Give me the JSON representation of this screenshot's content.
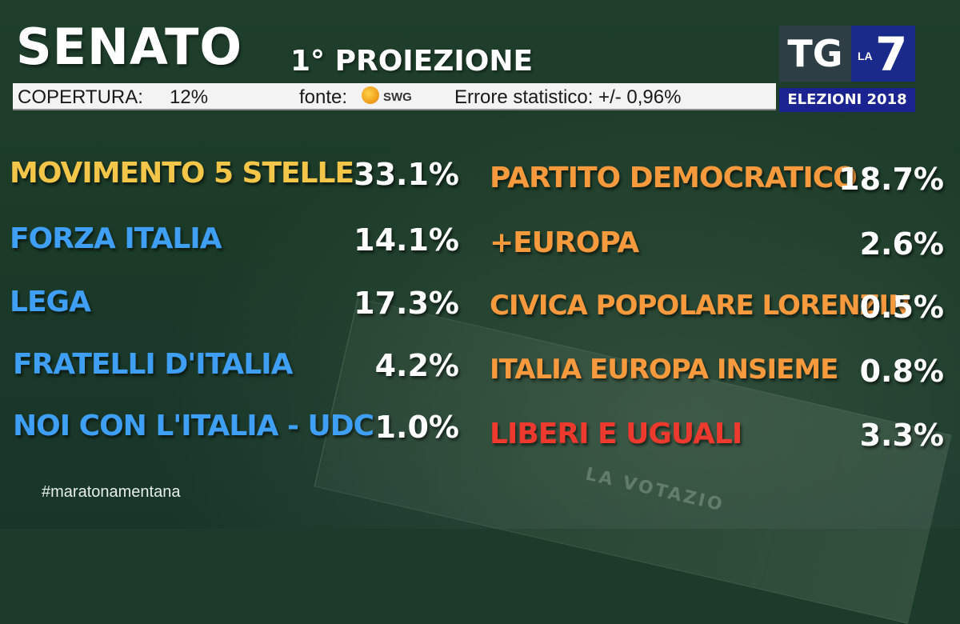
{
  "header": {
    "title": "SENATO",
    "subtitle": "1° PROIEZIONE"
  },
  "infobar": {
    "coverage_label": "COPERTURA:",
    "coverage_value": "12%",
    "source_label": "fonte:",
    "source_logo_text": "SWG",
    "error_text": "Errore statistico: +/- 0,96%"
  },
  "branding": {
    "tg": "TG",
    "la": "LA",
    "seven": "7",
    "election": "ELEZIONI 2018"
  },
  "left_column": [
    {
      "party": "MOVIMENTO 5 STELLE",
      "value": "33.1%",
      "color": "#f3c64a"
    },
    {
      "party": "FORZA ITALIA",
      "value": "14.1%",
      "color": "#3f9ff5"
    },
    {
      "party": "LEGA",
      "value": "17.3%",
      "color": "#3f9ff5"
    },
    {
      "party": "FRATELLI D'ITALIA",
      "value": "4.2%",
      "color": "#3f9ff5"
    },
    {
      "party": "NOI CON L'ITALIA - UDC",
      "value": "1.0%",
      "color": "#3f9ff5"
    }
  ],
  "right_column": [
    {
      "party": "PARTITO DEMOCRATICO",
      "value": "18.7%",
      "color": "#f79a3e"
    },
    {
      "party": "+EUROPA",
      "value": "2.6%",
      "color": "#f79a3e"
    },
    {
      "party": "CIVICA POPOLARE LORENZIN",
      "value": "0.5%",
      "color": "#f79a3e"
    },
    {
      "party": "ITALIA EUROPA INSIEME",
      "value": "0.8%",
      "color": "#f79a3e"
    },
    {
      "party": "LIBERI E UGUALI",
      "value": "3.3%",
      "color": "#ee3a2e"
    }
  ],
  "footer": {
    "hashtag": "#maratonamentana"
  },
  "background_text": "LA VOTAZIO"
}
